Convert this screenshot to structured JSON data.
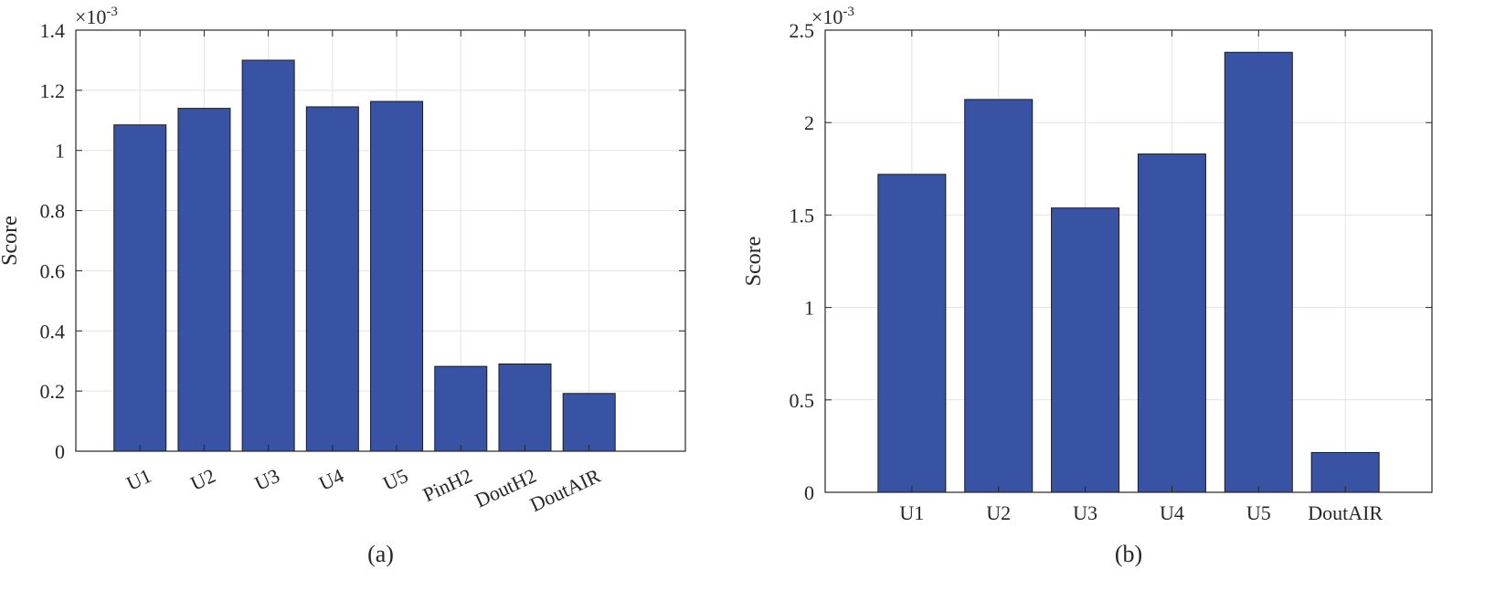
{
  "colors": {
    "bar": "#3953a4",
    "bar_edge": "#1a1a1a",
    "grid": "#e3e3e3",
    "axis": "#262626"
  },
  "chart_data": [
    {
      "type": "bar",
      "caption": "(a)",
      "categories": [
        "U1",
        "U2",
        "U3",
        "U4",
        "U5",
        "PinH2",
        "DoutH2",
        "DoutAIR"
      ],
      "values": [
        1.085,
        1.14,
        1.3,
        1.145,
        1.163,
        0.282,
        0.29,
        0.192
      ],
      "ylabel": "Score",
      "ylim": [
        0,
        1.4
      ],
      "yticks": [
        0,
        0.2,
        0.4,
        0.6,
        0.8,
        1,
        1.2,
        1.4
      ],
      "ytick_labels": [
        "0",
        "0.2",
        "0.4",
        "0.6",
        "0.8",
        "1",
        "1.2",
        "1.4"
      ],
      "exponent_base": "×10",
      "exponent_power": "-3",
      "grid": true,
      "xtick_rotation": "rotated"
    },
    {
      "type": "bar",
      "caption": "(b)",
      "categories": [
        "U1",
        "U2",
        "U3",
        "U4",
        "U5",
        "DoutAIR"
      ],
      "values": [
        1.72,
        2.125,
        1.538,
        1.83,
        2.38,
        0.215
      ],
      "ylabel": "Score",
      "ylim": [
        0,
        2.5
      ],
      "yticks": [
        0,
        0.5,
        1,
        1.5,
        2,
        2.5
      ],
      "ytick_labels": [
        "0",
        "0.5",
        "1",
        "1.5",
        "2",
        "2.5"
      ],
      "exponent_base": "×10",
      "exponent_power": "-3",
      "grid": true,
      "xtick_rotation": "horizontal"
    }
  ]
}
